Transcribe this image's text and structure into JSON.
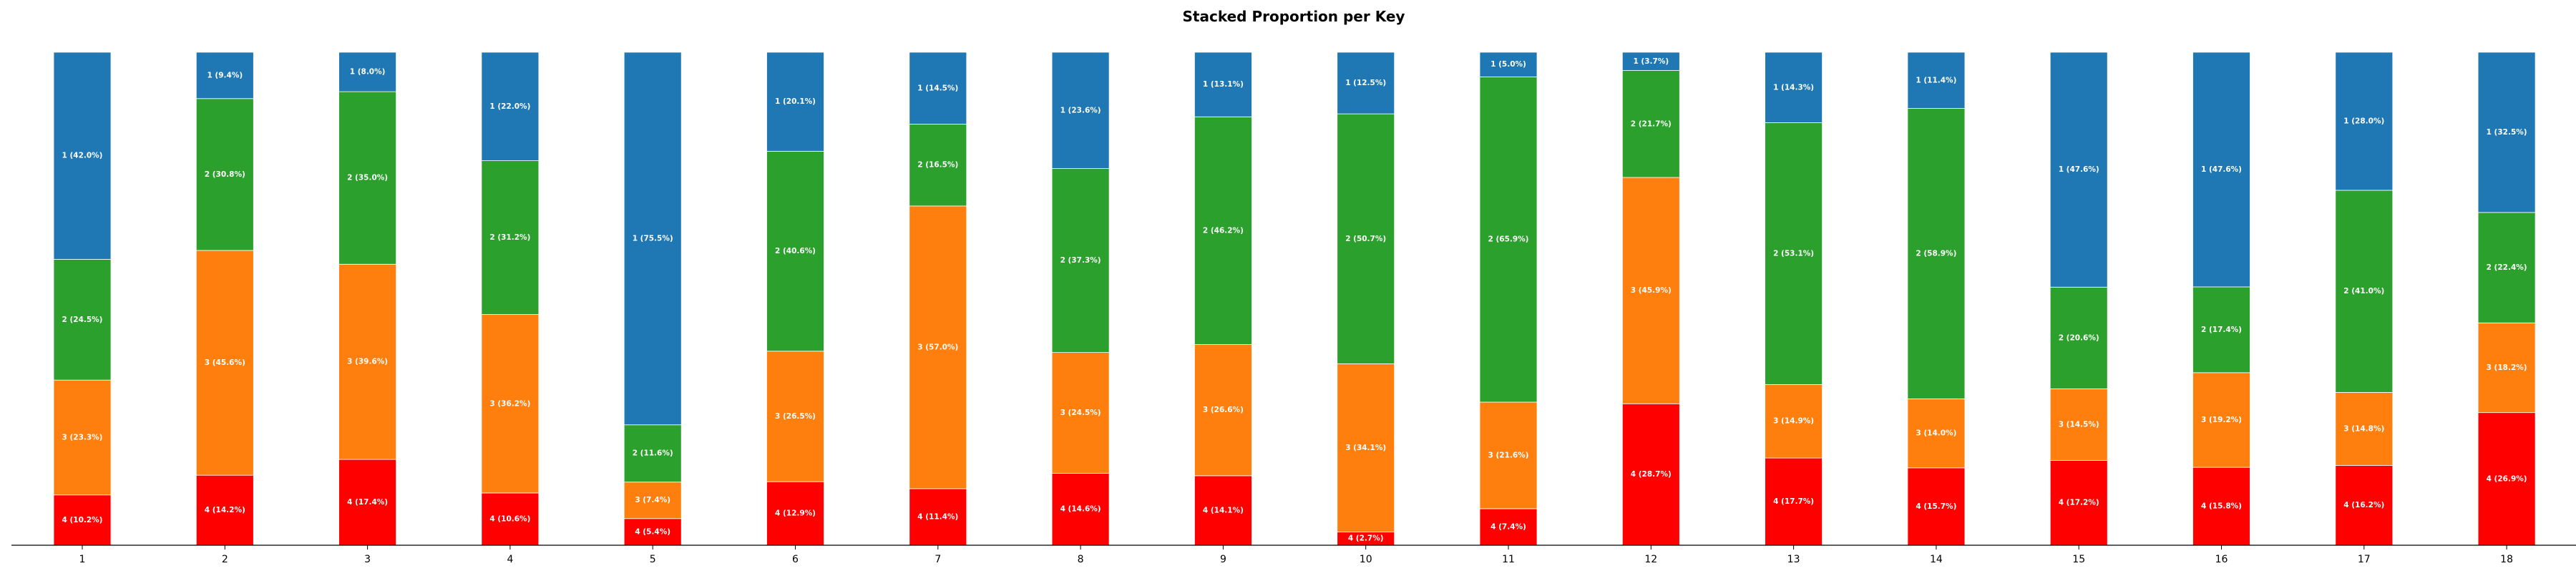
{
  "chart_data": {
    "type": "bar",
    "stacked": true,
    "normalized": true,
    "title": "Stacked Proportion per Key",
    "xlabel": "",
    "ylabel": "",
    "ylim": [
      0,
      1
    ],
    "grid": false,
    "legend": "none",
    "categories": [
      "1",
      "2",
      "3",
      "4",
      "5",
      "6",
      "7",
      "8",
      "9",
      "10",
      "11",
      "12",
      "13",
      "14",
      "15",
      "16",
      "17",
      "18"
    ],
    "series": [
      {
        "name": "4",
        "color": "#ff0000",
        "values": [
          10.2,
          14.2,
          17.4,
          10.6,
          5.4,
          12.9,
          11.4,
          14.6,
          14.1,
          2.7,
          7.4,
          28.7,
          17.7,
          15.7,
          17.2,
          15.8,
          16.2,
          26.9
        ],
        "labels": [
          "4 (10.2%)",
          "4 (14.2%)",
          "4 (17.4%)",
          "4 (10.6%)",
          "4 (5.4%)",
          "4 (12.9%)",
          "4 (11.4%)",
          "4 (14.6%)",
          "4 (14.1%)",
          "4 (2.7%)",
          "4 (7.4%)",
          "4 (28.7%)",
          "4 (17.7%)",
          "4 (15.7%)",
          "4 (17.2%)",
          "4 (15.8%)",
          "4 (16.2%)",
          "4 (26.9%)"
        ]
      },
      {
        "name": "3",
        "color": "#ff7f0e",
        "values": [
          23.3,
          45.6,
          39.6,
          36.2,
          7.4,
          26.5,
          57.0,
          24.5,
          26.6,
          34.1,
          21.6,
          45.9,
          14.9,
          14.0,
          14.5,
          19.2,
          14.8,
          18.2
        ],
        "labels": [
          "3 (23.3%)",
          "3 (45.6%)",
          "3 (39.6%)",
          "3 (36.2%)",
          "3 (7.4%)",
          "3 (26.5%)",
          "3 (57.0%)",
          "3 (24.5%)",
          "3 (26.6%)",
          "3 (34.1%)",
          "3 (21.6%)",
          "3 (45.9%)",
          "3 (14.9%)",
          "3 (14.0%)",
          "3 (14.5%)",
          "3 (19.2%)",
          "3 (14.8%)",
          "3 (18.2%)"
        ]
      },
      {
        "name": "2",
        "color": "#2ca02c",
        "values": [
          24.5,
          30.8,
          35.0,
          31.2,
          11.6,
          40.6,
          16.5,
          37.3,
          46.2,
          50.7,
          65.9,
          21.7,
          53.1,
          58.9,
          20.6,
          17.4,
          41.0,
          22.4
        ],
        "labels": [
          "2 (24.5%)",
          "2 (30.8%)",
          "2 (35.0%)",
          "2 (31.2%)",
          "2 (11.6%)",
          "2 (40.6%)",
          "2 (16.5%)",
          "2 (37.3%)",
          "2 (46.2%)",
          "2 (50.7%)",
          "2 (65.9%)",
          "2 (21.7%)",
          "2 (53.1%)",
          "2 (58.9%)",
          "2 (20.6%)",
          "2 (17.4%)",
          "2 (41.0%)",
          "2 (22.4%)"
        ]
      },
      {
        "name": "1",
        "color": "#1f77b4",
        "values": [
          42.0,
          9.4,
          8.0,
          22.0,
          75.5,
          20.1,
          14.5,
          23.6,
          13.1,
          12.5,
          5.0,
          3.7,
          14.3,
          11.4,
          47.6,
          47.6,
          28.0,
          32.5
        ],
        "labels": [
          "1 (42.0%)",
          "1 (9.4%)",
          "1 (8.0%)",
          "1 (22.0%)",
          "1 (75.5%)",
          "1 (20.1%)",
          "1 (14.5%)",
          "1 (23.6%)",
          "1 (13.1%)",
          "1 (12.5%)",
          "1 (5.0%)",
          "1 (3.7%)",
          "1 (14.3%)",
          "1 (11.4%)",
          "1 (47.6%)",
          "1 (47.6%)",
          "1 (28.0%)",
          "1 (32.5%)"
        ]
      }
    ]
  }
}
